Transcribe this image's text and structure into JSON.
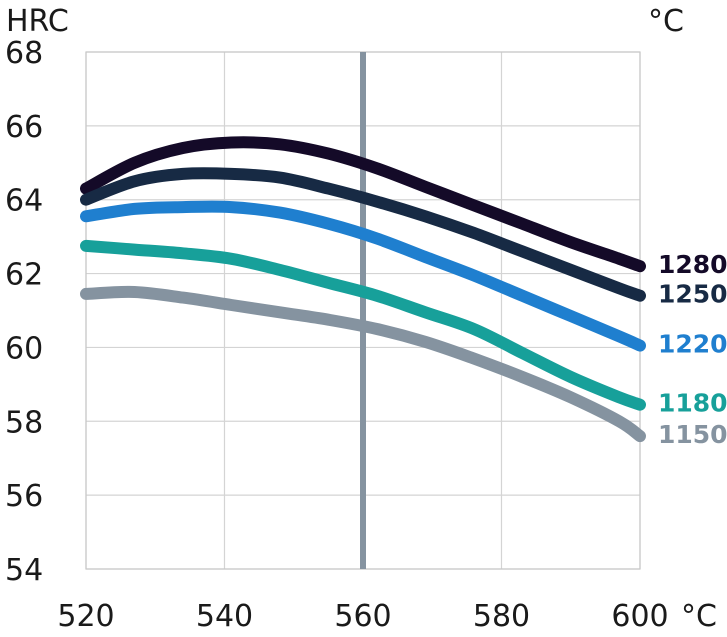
{
  "chart_data": {
    "type": "line",
    "ylabel": "HRC",
    "xunit_top": "°C",
    "xunit_bottom": "°C",
    "xlim": [
      520,
      600
    ],
    "ylim": [
      54,
      68
    ],
    "xticks": [
      "520",
      "540",
      "560",
      "580",
      "600"
    ],
    "yticks": [
      "54",
      "56",
      "58",
      "60",
      "62",
      "64",
      "66",
      "68"
    ],
    "reference_x": 560,
    "reference_color": "#8593a0",
    "grid": true,
    "series": [
      {
        "name": "1280",
        "color": "#140a28",
        "x": [
          520,
          527,
          534,
          541,
          548,
          555,
          562,
          569,
          576,
          583,
          590,
          597,
          600
        ],
        "y": [
          64.3,
          65.0,
          65.4,
          65.55,
          65.5,
          65.25,
          64.85,
          64.35,
          63.85,
          63.35,
          62.85,
          62.4,
          62.2
        ]
      },
      {
        "name": "1250",
        "color": "#172a44",
        "x": [
          520,
          527,
          534,
          541,
          548,
          555,
          562,
          569,
          576,
          583,
          590,
          597,
          600
        ],
        "y": [
          64.0,
          64.5,
          64.7,
          64.7,
          64.6,
          64.3,
          63.95,
          63.55,
          63.1,
          62.6,
          62.1,
          61.6,
          61.4
        ]
      },
      {
        "name": "1220",
        "color": "#1f7fcf",
        "x": [
          520,
          527,
          534,
          541,
          548,
          555,
          562,
          569,
          576,
          583,
          590,
          597,
          600
        ],
        "y": [
          63.55,
          63.75,
          63.8,
          63.8,
          63.65,
          63.35,
          62.95,
          62.45,
          61.95,
          61.4,
          60.85,
          60.3,
          60.05
        ]
      },
      {
        "name": "1180",
        "color": "#17a09a",
        "x": [
          520,
          527,
          534,
          541,
          548,
          555,
          562,
          569,
          576,
          583,
          590,
          597,
          600
        ],
        "y": [
          62.75,
          62.65,
          62.55,
          62.4,
          62.1,
          61.75,
          61.4,
          60.95,
          60.5,
          59.85,
          59.2,
          58.65,
          58.45
        ]
      },
      {
        "name": "1150",
        "color": "#8593a0",
        "x": [
          520,
          527,
          534,
          541,
          548,
          555,
          562,
          569,
          576,
          583,
          590,
          597,
          600
        ],
        "y": [
          61.45,
          61.5,
          61.35,
          61.15,
          60.95,
          60.75,
          60.5,
          60.15,
          59.7,
          59.2,
          58.65,
          58.0,
          57.6
        ]
      }
    ]
  }
}
